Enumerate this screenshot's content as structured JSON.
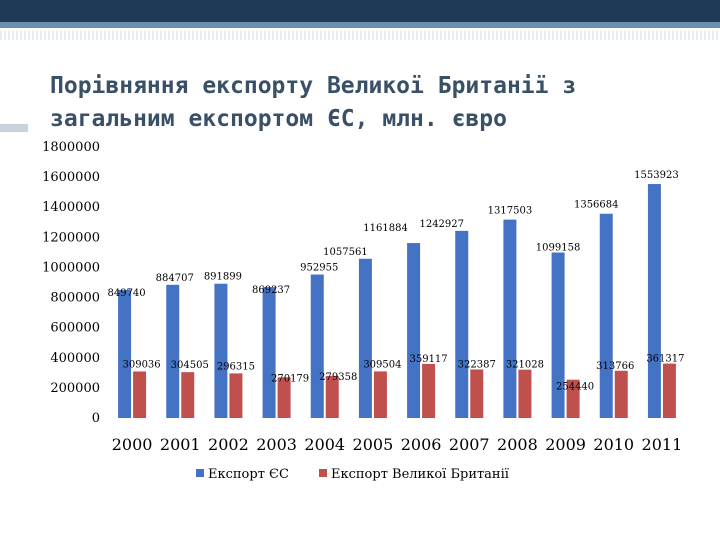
{
  "title": "Порівняння експорту Великої Британії з загальним експортом ЄС, млн. євро",
  "colors": {
    "series_eu": "#4472c4",
    "series_uk": "#c0504d"
  },
  "chart_data": {
    "type": "bar",
    "title": "Порівняння експорту Великої Британії з загальним експортом ЄС, млн. євро",
    "categories": [
      "2000",
      "2001",
      "2002",
      "2003",
      "2004",
      "2005",
      "2006",
      "2007",
      "2008",
      "2009",
      "2010",
      "2011"
    ],
    "series": [
      {
        "name": "Експорт ЄС",
        "color": "#4472c4",
        "values": [
          849740,
          884707,
          891899,
          869237,
          952955,
          1057561,
          1161884,
          1242927,
          1317503,
          1099158,
          1356684,
          1553923
        ],
        "labels": [
          "849740",
          "884707",
          "891899",
          "869237",
          "952955",
          "1057561",
          "1161884",
          "1242927",
          "1317503",
          "1099158",
          "1356684",
          "1553923"
        ]
      },
      {
        "name": "Експорт Великої Британії",
        "color": "#c0504d",
        "values": [
          309036,
          304505,
          296315,
          270179,
          279358,
          309504,
          359117,
          322387,
          321028,
          254440,
          313766,
          361317
        ],
        "labels": [
          "309036",
          "304505",
          "296315",
          "270179",
          "279358",
          "309504",
          "359117",
          "322387",
          "321028",
          "254440",
          "313766",
          "361317"
        ]
      }
    ],
    "ylim": [
      0,
      1800000
    ],
    "yticks": [
      "0",
      "200000",
      "400000",
      "600000",
      "800000",
      "1000000",
      "1200000",
      "1400000",
      "1600000",
      "1800000"
    ],
    "xlabel": "",
    "ylabel": "",
    "grid": false,
    "legend": "bottom"
  }
}
